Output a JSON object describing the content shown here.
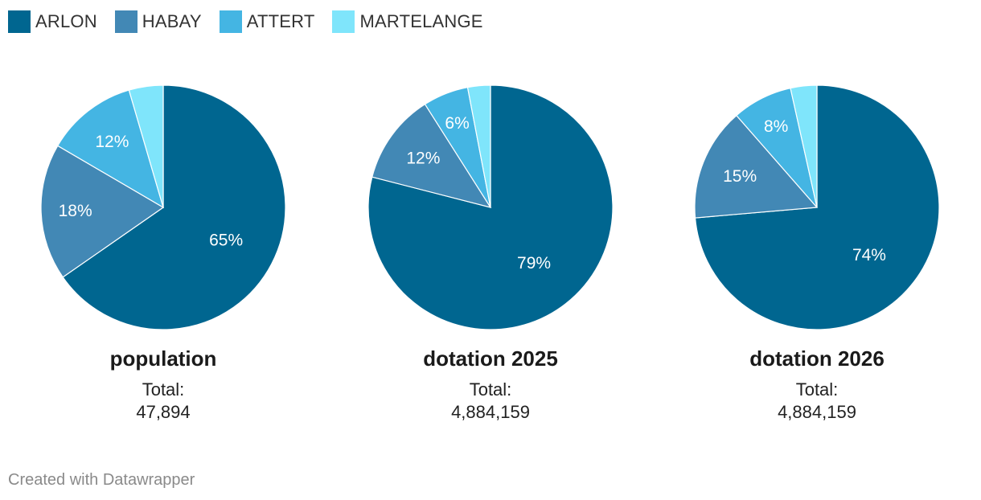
{
  "legend": [
    {
      "label": "ARLON",
      "color": "#006690"
    },
    {
      "label": "HABAY",
      "color": "#4288b5"
    },
    {
      "label": "ATTERT",
      "color": "#44b5e3"
    },
    {
      "label": "MARTELANGE",
      "color": "#7fe5fb"
    }
  ],
  "total_label": "Total:",
  "footer": "Created with Datawrapper",
  "chart_data": [
    {
      "type": "pie",
      "title": "population",
      "total": "47,894",
      "slices": [
        {
          "name": "ARLON",
          "value": 65,
          "label": "65%"
        },
        {
          "name": "HABAY",
          "value": 18,
          "label": "18%"
        },
        {
          "name": "ATTERT",
          "value": 12,
          "label": "12%"
        },
        {
          "name": "MARTELANGE",
          "value": 4.5,
          "label": ""
        }
      ]
    },
    {
      "type": "pie",
      "title": "dotation 2025",
      "total": "4,884,159",
      "slices": [
        {
          "name": "ARLON",
          "value": 79,
          "label": "79%"
        },
        {
          "name": "HABAY",
          "value": 12,
          "label": "12%"
        },
        {
          "name": "ATTERT",
          "value": 6,
          "label": "6%"
        },
        {
          "name": "MARTELANGE",
          "value": 3,
          "label": ""
        }
      ]
    },
    {
      "type": "pie",
      "title": "dotation 2026",
      "total": "4,884,159",
      "slices": [
        {
          "name": "ARLON",
          "value": 74,
          "label": "74%"
        },
        {
          "name": "HABAY",
          "value": 15,
          "label": "15%"
        },
        {
          "name": "ATTERT",
          "value": 8,
          "label": "8%"
        },
        {
          "name": "MARTELANGE",
          "value": 3.5,
          "label": ""
        }
      ]
    }
  ]
}
